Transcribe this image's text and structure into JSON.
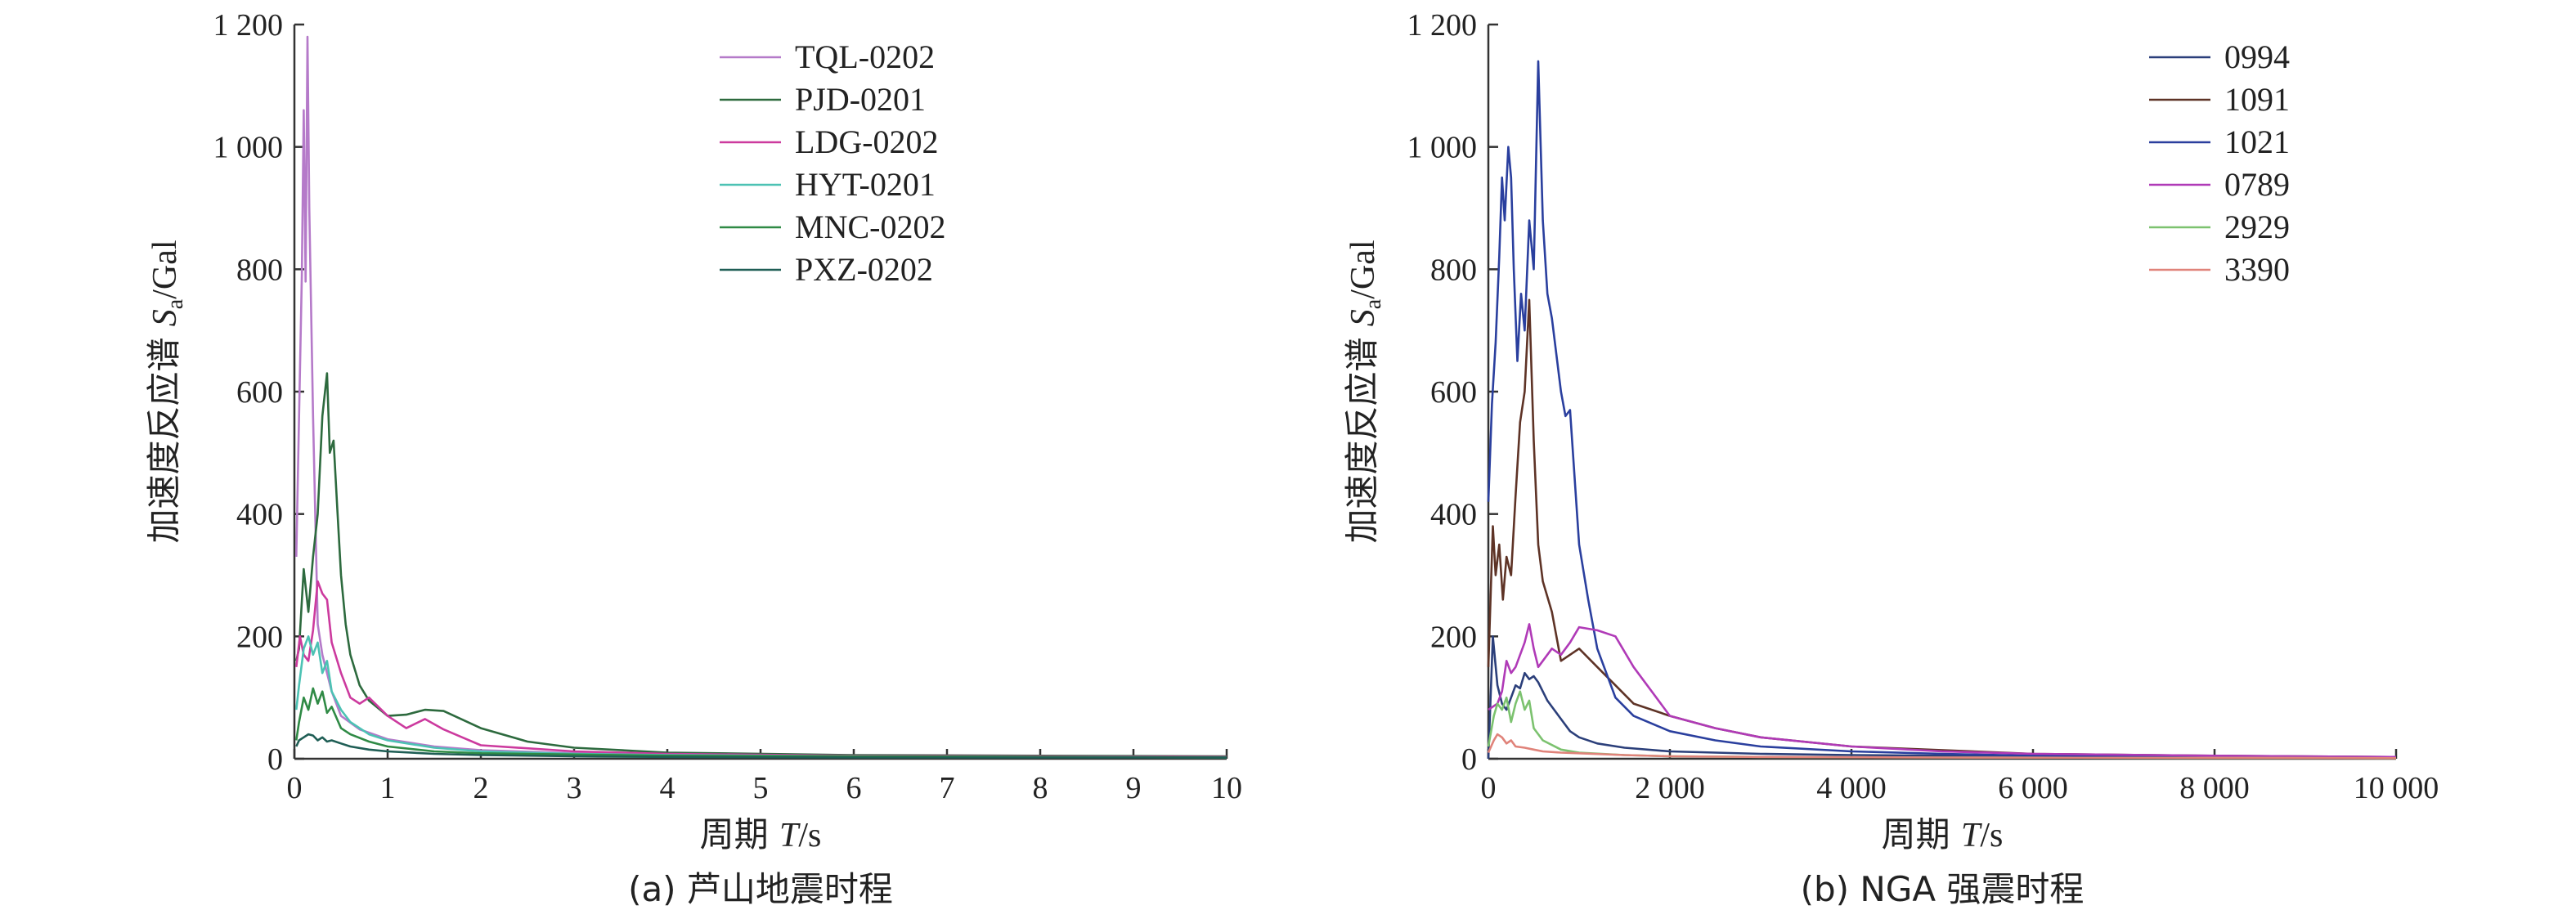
{
  "chart_data": [
    {
      "type": "line",
      "caption": "(a) 芦山地震时程",
      "xlabel": "周期 T/s",
      "ylabel": "加速度反应谱 Sa/Gal",
      "xlim": [
        0,
        10
      ],
      "ylim": [
        0,
        1200
      ],
      "x_ticks": [
        0,
        1,
        2,
        3,
        4,
        5,
        6,
        7,
        8,
        9,
        10
      ],
      "x_tick_labels": [
        "0",
        "1",
        "2",
        "3",
        "4",
        "5",
        "6",
        "7",
        "8",
        "9",
        "10"
      ],
      "y_ticks": [
        0,
        200,
        400,
        600,
        800,
        1000,
        1200
      ],
      "y_tick_labels": [
        "0",
        "200",
        "400",
        "600",
        "800",
        "1 000",
        "1 200"
      ],
      "legend_position": "top-right",
      "series": [
        {
          "name": "TQL-0202",
          "color": "#b57ac9",
          "x": [
            0.02,
            0.05,
            0.08,
            0.1,
            0.12,
            0.14,
            0.16,
            0.2,
            0.25,
            0.3,
            0.4,
            0.5,
            0.7,
            1.0,
            1.5,
            2.0,
            3.0,
            4.0,
            6.0,
            8.0,
            10.0
          ],
          "y": [
            330,
            560,
            790,
            1060,
            780,
            1180,
            900,
            560,
            220,
            170,
            110,
            70,
            48,
            32,
            20,
            14,
            9,
            7,
            5,
            4,
            3
          ]
        },
        {
          "name": "PJD-0201",
          "color": "#2d6a3e",
          "x": [
            0.02,
            0.05,
            0.1,
            0.15,
            0.2,
            0.25,
            0.3,
            0.35,
            0.38,
            0.42,
            0.46,
            0.5,
            0.55,
            0.6,
            0.7,
            0.8,
            1.0,
            1.2,
            1.4,
            1.6,
            1.8,
            2.0,
            2.5,
            3.0,
            4.0,
            6.0,
            8.0,
            10.0
          ],
          "y": [
            160,
            180,
            310,
            240,
            330,
            400,
            560,
            630,
            500,
            520,
            410,
            300,
            220,
            170,
            120,
            95,
            70,
            72,
            80,
            78,
            64,
            50,
            28,
            18,
            10,
            6,
            5,
            4
          ]
        },
        {
          "name": "LDG-0202",
          "color": "#cc3a9e",
          "x": [
            0.02,
            0.06,
            0.1,
            0.15,
            0.2,
            0.25,
            0.3,
            0.35,
            0.4,
            0.5,
            0.6,
            0.7,
            0.8,
            1.0,
            1.2,
            1.4,
            1.6,
            1.8,
            2.0,
            3.0,
            4.0,
            6.0,
            8.0,
            10.0
          ],
          "y": [
            150,
            200,
            170,
            160,
            210,
            290,
            270,
            260,
            190,
            140,
            100,
            90,
            100,
            70,
            50,
            65,
            48,
            35,
            22,
            12,
            8,
            5,
            4,
            3
          ]
        },
        {
          "name": "HYT-0201",
          "color": "#4cc2b4",
          "x": [
            0.02,
            0.05,
            0.1,
            0.15,
            0.2,
            0.25,
            0.3,
            0.35,
            0.4,
            0.5,
            0.6,
            0.7,
            0.8,
            1.0,
            1.5,
            2.0,
            3.0,
            4.0,
            6.0,
            8.0,
            10.0
          ],
          "y": [
            80,
            120,
            180,
            200,
            170,
            190,
            140,
            160,
            110,
            80,
            60,
            50,
            40,
            30,
            18,
            12,
            8,
            6,
            4,
            3,
            2
          ]
        },
        {
          "name": "MNC-0202",
          "color": "#2f8a45",
          "x": [
            0.02,
            0.05,
            0.1,
            0.15,
            0.2,
            0.25,
            0.3,
            0.35,
            0.4,
            0.5,
            0.6,
            0.8,
            1.0,
            1.5,
            2.0,
            3.0,
            4.0,
            6.0,
            8.0,
            10.0
          ],
          "y": [
            30,
            60,
            100,
            80,
            115,
            90,
            110,
            75,
            85,
            50,
            40,
            28,
            20,
            12,
            9,
            7,
            5,
            4,
            3,
            2
          ]
        },
        {
          "name": "PXZ-0202",
          "color": "#1f5e55",
          "x": [
            0.02,
            0.05,
            0.1,
            0.15,
            0.2,
            0.25,
            0.3,
            0.35,
            0.4,
            0.5,
            0.6,
            0.8,
            1.0,
            1.5,
            2.0,
            3.0,
            4.0,
            6.0,
            8.0,
            10.0
          ],
          "y": [
            20,
            30,
            35,
            40,
            38,
            30,
            35,
            28,
            30,
            25,
            20,
            15,
            12,
            8,
            6,
            4,
            3,
            2,
            2,
            2
          ]
        }
      ]
    },
    {
      "type": "line",
      "caption": "(b) NGA 强震时程",
      "xlabel": "周期 T/s",
      "ylabel": "加速度反应谱 Sa/Gal",
      "xlim": [
        0,
        10000
      ],
      "ylim": [
        0,
        1200
      ],
      "x_ticks": [
        0,
        2000,
        4000,
        6000,
        8000,
        10000
      ],
      "x_tick_labels": [
        "0",
        "2 000",
        "4 000",
        "6 000",
        "8 000",
        "10 000"
      ],
      "y_ticks": [
        0,
        200,
        400,
        600,
        800,
        1000,
        1200
      ],
      "y_tick_labels": [
        "0",
        "200",
        "400",
        "600",
        "800",
        "1 000",
        "1 200"
      ],
      "legend_position": "top-right",
      "series": [
        {
          "name": "0994",
          "color": "#2b3f7a",
          "x": [
            0,
            50,
            100,
            150,
            200,
            250,
            300,
            350,
            400,
            450,
            500,
            550,
            600,
            650,
            700,
            800,
            900,
            1000,
            1200,
            1500,
            2000,
            3000,
            4000,
            6000,
            8000,
            10000
          ],
          "y": [
            0,
            200,
            120,
            90,
            80,
            100,
            120,
            115,
            140,
            130,
            135,
            125,
            110,
            95,
            85,
            65,
            45,
            35,
            25,
            18,
            12,
            8,
            6,
            4,
            3,
            2
          ]
        },
        {
          "name": "1091",
          "color": "#5e3326",
          "x": [
            0,
            50,
            80,
            120,
            160,
            200,
            250,
            300,
            350,
            400,
            450,
            500,
            550,
            600,
            700,
            800,
            900,
            1000,
            1200,
            1400,
            1600,
            2000,
            2500,
            3000,
            4000,
            6000,
            8000,
            10000
          ],
          "y": [
            150,
            380,
            300,
            350,
            260,
            330,
            300,
            430,
            550,
            600,
            750,
            520,
            350,
            290,
            240,
            160,
            170,
            180,
            150,
            120,
            90,
            70,
            50,
            35,
            20,
            8,
            5,
            3
          ]
        },
        {
          "name": "1021",
          "color": "#2a3f9e",
          "x": [
            0,
            40,
            80,
            120,
            150,
            180,
            220,
            250,
            280,
            320,
            360,
            400,
            450,
            500,
            550,
            600,
            650,
            700,
            800,
            850,
            900,
            1000,
            1100,
            1200,
            1400,
            1600,
            2000,
            2500,
            3000,
            4000,
            5000,
            6000,
            8000,
            10000
          ],
          "y": [
            420,
            580,
            680,
            820,
            950,
            880,
            1000,
            950,
            800,
            650,
            760,
            700,
            880,
            800,
            1140,
            880,
            760,
            720,
            600,
            560,
            570,
            350,
            260,
            180,
            100,
            70,
            45,
            30,
            20,
            12,
            8,
            5,
            3,
            2
          ]
        },
        {
          "name": "0789",
          "color": "#b03ab7",
          "x": [
            0,
            100,
            150,
            200,
            250,
            300,
            400,
            450,
            500,
            550,
            600,
            700,
            800,
            900,
            1000,
            1200,
            1400,
            1600,
            2000,
            2500,
            3000,
            4000,
            5000,
            6000,
            8000,
            10000
          ],
          "y": [
            80,
            90,
            110,
            160,
            140,
            150,
            190,
            220,
            180,
            150,
            160,
            180,
            170,
            190,
            215,
            210,
            200,
            150,
            70,
            50,
            35,
            20,
            12,
            8,
            5,
            3
          ]
        },
        {
          "name": "2929",
          "color": "#7cc26f",
          "x": [
            0,
            60,
            100,
            150,
            200,
            250,
            300,
            350,
            400,
            450,
            500,
            600,
            800,
            1000,
            1500,
            2000,
            3000,
            5000,
            10000
          ],
          "y": [
            20,
            70,
            90,
            80,
            100,
            60,
            90,
            110,
            80,
            95,
            50,
            30,
            15,
            10,
            6,
            4,
            3,
            2,
            1
          ]
        },
        {
          "name": "3390",
          "color": "#e0837a",
          "x": [
            0,
            60,
            100,
            150,
            200,
            250,
            300,
            400,
            500,
            600,
            800,
            1000,
            1500,
            2000,
            3000,
            5000,
            10000
          ],
          "y": [
            10,
            30,
            40,
            35,
            25,
            30,
            20,
            18,
            15,
            12,
            10,
            9,
            6,
            4,
            3,
            2,
            1
          ]
        }
      ]
    }
  ]
}
